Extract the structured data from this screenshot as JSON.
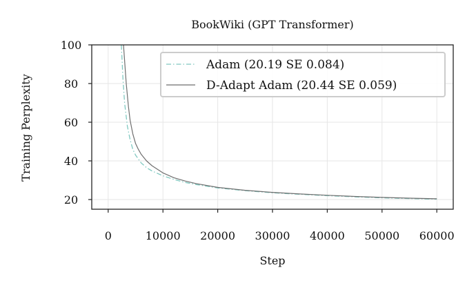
{
  "chart_data": {
    "type": "line",
    "title": "BookWiki (GPT Transformer)",
    "xlabel": "Step",
    "ylabel": "Training Perplexity",
    "xlim": [
      -3000,
      63000
    ],
    "ylim": [
      15,
      100
    ],
    "xticks": [
      0,
      10000,
      20000,
      30000,
      40000,
      50000,
      60000
    ],
    "yticks": [
      20,
      40,
      60,
      80,
      100
    ],
    "grid": true,
    "legend_position": "top-right",
    "series": [
      {
        "name": "Adam (20.19 SE 0.084)",
        "color": "#7fc8c0",
        "style": "dashdot",
        "x": [
          2400,
          2700,
          3000,
          3500,
          4000,
          4500,
          5000,
          6000,
          7000,
          8000,
          10000,
          12000,
          14000,
          16000,
          20000,
          25000,
          30000,
          35000,
          40000,
          45000,
          50000,
          55000,
          60000
        ],
        "y": [
          100,
          82,
          70,
          58,
          51,
          46,
          43,
          39,
          36.5,
          34.8,
          32.3,
          30.4,
          28.9,
          27.8,
          26.0,
          24.6,
          23.5,
          22.7,
          22.0,
          21.4,
          20.9,
          20.5,
          20.2
        ]
      },
      {
        "name": "D-Adapt Adam (20.44 SE 0.059)",
        "color": "#6e6e6e",
        "style": "solid",
        "x": [
          2800,
          3000,
          3300,
          3700,
          4000,
          4500,
          5000,
          5500,
          6000,
          7000,
          8000,
          10000,
          12000,
          14000,
          16000,
          20000,
          25000,
          30000,
          35000,
          40000,
          45000,
          50000,
          55000,
          60000
        ],
        "y": [
          100,
          92,
          80,
          68,
          61,
          54,
          49,
          46,
          43.5,
          40,
          37.5,
          33.8,
          31.3,
          29.6,
          28.3,
          26.3,
          24.8,
          23.7,
          22.9,
          22.2,
          21.6,
          21.1,
          20.7,
          20.4
        ]
      }
    ]
  }
}
